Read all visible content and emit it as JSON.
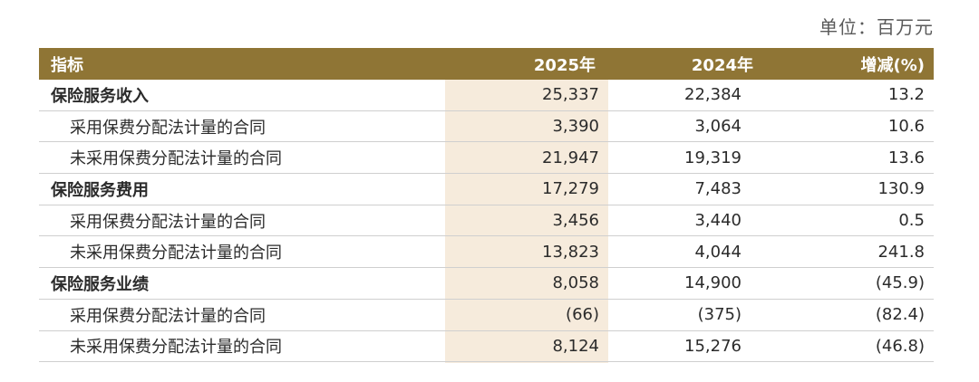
{
  "unit_label": "单位：百万元",
  "header": {
    "indicator": "指标",
    "y2025": "2025年",
    "y2024": "2024年",
    "change": "增减(%)"
  },
  "rows": [
    {
      "label": "保险服务收入",
      "type": "main",
      "y2025": "25,337",
      "y2024": "22,384",
      "change": "13.2"
    },
    {
      "label": "采用保费分配法计量的合同",
      "type": "sub",
      "y2025": "3,390",
      "y2024": "3,064",
      "change": "10.6"
    },
    {
      "label": "未采用保费分配法计量的合同",
      "type": "sub",
      "y2025": "21,947",
      "y2024": "19,319",
      "change": "13.6"
    },
    {
      "label": "保险服务费用",
      "type": "main",
      "y2025": "17,279",
      "y2024": "7,483",
      "change": "130.9"
    },
    {
      "label": "采用保费分配法计量的合同",
      "type": "sub",
      "y2025": "3,456",
      "y2024": "3,440",
      "change": "0.5"
    },
    {
      "label": "未采用保费分配法计量的合同",
      "type": "sub",
      "y2025": "13,823",
      "y2024": "4,044",
      "change": "241.8"
    },
    {
      "label": "保险服务业绩",
      "type": "main",
      "y2025": "8,058",
      "y2024": "14,900",
      "change": "(45.9)"
    },
    {
      "label": "采用保费分配法计量的合同",
      "type": "sub",
      "y2025": "(66)",
      "y2024": "(375)",
      "change": "(82.4)"
    },
    {
      "label": "未采用保费分配法计量的合同",
      "type": "sub",
      "y2025": "8,124",
      "y2024": "15,276",
      "change": "(46.8)"
    }
  ],
  "colors": {
    "header_bg": "#8f7535",
    "highlight_bg": "#f6ebdc"
  }
}
